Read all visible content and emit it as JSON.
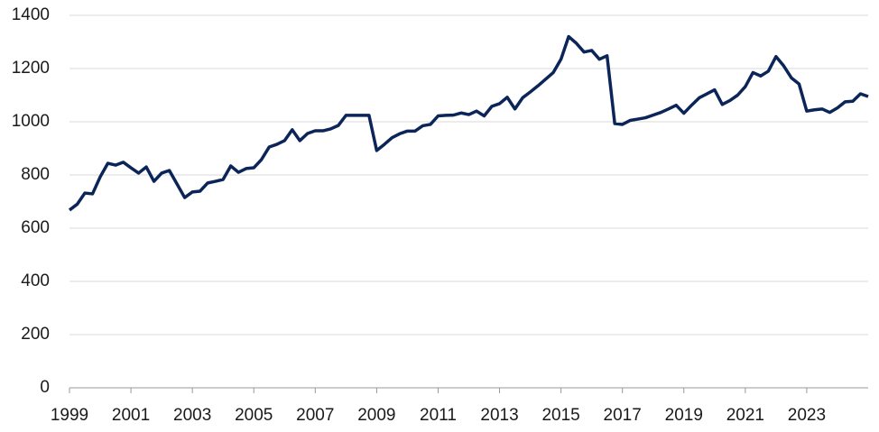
{
  "chart_data": {
    "type": "line",
    "x": [
      1999,
      1999.25,
      1999.5,
      1999.75,
      2000,
      2000.25,
      2000.5,
      2000.75,
      2001,
      2001.25,
      2001.5,
      2001.75,
      2002,
      2002.25,
      2002.5,
      2002.75,
      2003,
      2003.25,
      2003.5,
      2003.75,
      2004,
      2004.25,
      2004.5,
      2004.75,
      2005,
      2005.25,
      2005.5,
      2005.75,
      2006,
      2006.25,
      2006.5,
      2006.75,
      2007,
      2007.25,
      2007.5,
      2007.75,
      2008,
      2008.25,
      2008.5,
      2008.75,
      2009,
      2009.25,
      2009.5,
      2009.75,
      2010,
      2010.25,
      2010.5,
      2010.75,
      2011,
      2011.25,
      2011.5,
      2011.75,
      2012,
      2012.25,
      2012.5,
      2012.75,
      2013,
      2013.25,
      2013.5,
      2013.75,
      2014,
      2014.25,
      2014.5,
      2014.75,
      2015,
      2015.25,
      2015.5,
      2015.75,
      2016,
      2016.25,
      2016.5,
      2016.75,
      2017,
      2017.25,
      2017.5,
      2017.75,
      2018,
      2018.25,
      2018.5,
      2018.75,
      2019,
      2019.25,
      2019.5,
      2019.75,
      2020,
      2020.25,
      2020.5,
      2020.75,
      2021,
      2021.25,
      2021.5,
      2021.75,
      2022,
      2022.25,
      2022.5,
      2022.75,
      2023,
      2023.25,
      2023.5,
      2023.75,
      2024,
      2024.25,
      2024.5,
      2024.75,
      2025
    ],
    "series": [
      {
        "color": "#0b2559",
        "values": [
          668,
          690,
          732,
          729,
          793,
          844,
          837,
          848,
          827,
          807,
          830,
          776,
          807,
          817,
          766,
          715,
          736,
          739,
          770,
          776,
          783,
          834,
          810,
          824,
          827,
          858,
          905,
          915,
          929,
          970,
          929,
          956,
          966,
          966,
          973,
          986,
          1024,
          1024,
          1024,
          1024,
          892,
          915,
          940,
          955,
          965,
          965,
          985,
          990,
          1022,
          1024,
          1025,
          1033,
          1027,
          1040,
          1022,
          1058,
          1068,
          1092,
          1048,
          1090,
          1112,
          1135,
          1160,
          1185,
          1235,
          1320,
          1295,
          1262,
          1268,
          1235,
          1248,
          993,
          990,
          1005,
          1010,
          1015,
          1025,
          1035,
          1048,
          1062,
          1032,
          1062,
          1090,
          1105,
          1120,
          1065,
          1080,
          1100,
          1132,
          1185,
          1172,
          1190,
          1245,
          1210,
          1165,
          1142,
          1040,
          1045,
          1048,
          1035,
          1052,
          1075,
          1077,
          1105,
          1095
        ]
      }
    ],
    "xlim": [
      1999,
      2025
    ],
    "xticks": [
      1999,
      2001,
      2003,
      2005,
      2007,
      2009,
      2011,
      2013,
      2015,
      2017,
      2019,
      2021,
      2023
    ],
    "ylim": [
      0,
      1400
    ],
    "yticks": [
      0,
      200,
      400,
      600,
      800,
      1000,
      1200,
      1400
    ],
    "grid": true
  }
}
